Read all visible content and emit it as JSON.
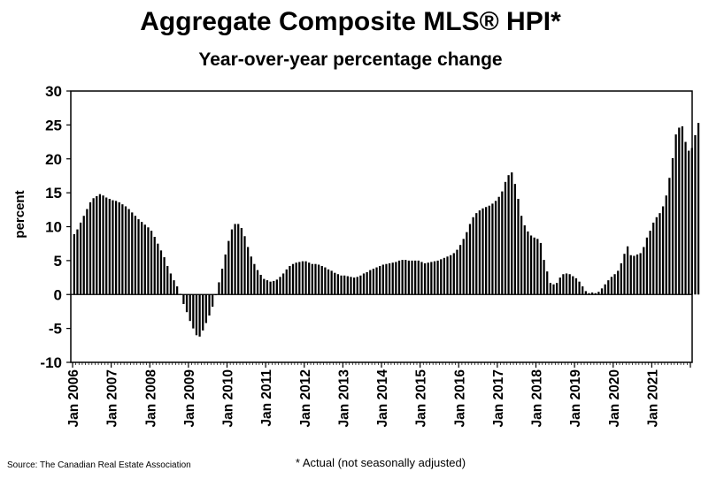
{
  "title": "Aggregate Composite MLS® HPI*",
  "subtitle": "Year-over-year percentage change",
  "source": "Source: The Canadian Real Estate Association",
  "footnote": "* Actual (not seasonally adjusted)",
  "chart_data": {
    "type": "bar",
    "title": "Aggregate Composite MLS® HPI*",
    "subtitle": "Year-over-year percentage change",
    "ylabel": "percent",
    "xlabel": "",
    "ylim": [
      -10,
      30
    ],
    "yticks": [
      -10,
      -5,
      0,
      5,
      10,
      15,
      20,
      25,
      30
    ],
    "grid": false,
    "legend": "none",
    "bar_color": "#000000",
    "start": "2006-01",
    "frequency": "monthly",
    "x_tick_labels": [
      "Jan 2006",
      "Jan 2007",
      "Jan 2008",
      "Jan 2009",
      "Jan 2010",
      "Jan 2011",
      "Jan 2012",
      "Jan 2013",
      "Jan 2014",
      "Jan 2015",
      "Jan 2016",
      "Jan 2017",
      "Jan 2018",
      "Jan 2019",
      "Jan 2020",
      "Jan 2021"
    ],
    "values": [
      8.9,
      9.6,
      10.6,
      11.6,
      12.6,
      13.6,
      14.2,
      14.5,
      14.8,
      14.6,
      14.3,
      14.1,
      13.9,
      13.8,
      13.6,
      13.3,
      13.0,
      12.6,
      12.1,
      11.6,
      11.1,
      10.7,
      10.3,
      9.9,
      9.4,
      8.5,
      7.5,
      6.5,
      5.5,
      4.2,
      3.1,
      2.1,
      1.2,
      0.1,
      -1.4,
      -2.6,
      -3.9,
      -5.0,
      -6.0,
      -6.2,
      -5.3,
      -4.2,
      -3.1,
      -1.8,
      0.0,
      1.8,
      3.8,
      5.9,
      7.9,
      9.6,
      10.4,
      10.4,
      9.8,
      8.6,
      7.0,
      5.6,
      4.5,
      3.6,
      2.9,
      2.3,
      2.1,
      1.9,
      2.0,
      2.2,
      2.6,
      3.1,
      3.7,
      4.2,
      4.5,
      4.7,
      4.8,
      4.9,
      4.9,
      4.7,
      4.5,
      4.5,
      4.4,
      4.2,
      4.0,
      3.7,
      3.5,
      3.2,
      3.0,
      2.8,
      2.8,
      2.7,
      2.6,
      2.5,
      2.6,
      2.8,
      3.1,
      3.3,
      3.6,
      3.8,
      4.0,
      4.2,
      4.4,
      4.5,
      4.6,
      4.7,
      4.8,
      5.0,
      5.1,
      5.1,
      5.0,
      5.0,
      5.0,
      5.0,
      4.8,
      4.6,
      4.7,
      4.8,
      4.9,
      5.0,
      5.2,
      5.4,
      5.6,
      5.8,
      6.1,
      6.6,
      7.3,
      8.2,
      9.2,
      10.4,
      11.4,
      12.0,
      12.4,
      12.7,
      12.9,
      13.1,
      13.4,
      13.8,
      14.4,
      15.2,
      16.6,
      17.6,
      18.0,
      16.3,
      14.1,
      11.6,
      10.2,
      9.3,
      8.7,
      8.4,
      8.2,
      7.6,
      5.1,
      3.4,
      1.7,
      1.5,
      1.7,
      2.5,
      3.0,
      3.1,
      3.0,
      2.7,
      2.4,
      1.9,
      1.2,
      0.5,
      0.2,
      0.3,
      0.2,
      0.4,
      0.9,
      1.5,
      2.1,
      2.6,
      3.0,
      3.5,
      4.6,
      6.0,
      7.1,
      5.8,
      5.7,
      5.9,
      6.1,
      7.0,
      8.4,
      9.4,
      10.6,
      11.4,
      12.0,
      13.0,
      14.6,
      17.2,
      20.1,
      23.6,
      24.6,
      24.8,
      22.5,
      21.2,
      21.6,
      23.5,
      25.3
    ]
  }
}
